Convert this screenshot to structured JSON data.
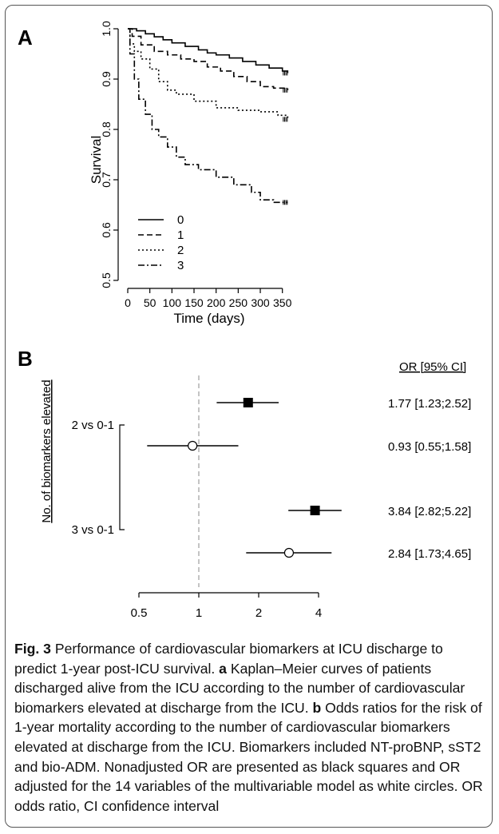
{
  "chart_data": [
    {
      "type": "line",
      "panel_label": "A",
      "xlabel": "Time (days)",
      "ylabel": "Survival",
      "xlim": [
        0,
        365
      ],
      "ylim": [
        0.5,
        1.0
      ],
      "xticks": [
        "0",
        "50",
        "100",
        "150",
        "200",
        "250",
        "300",
        "350"
      ],
      "yticks": [
        "0.5",
        "0.6",
        "0.7",
        "0.8",
        "0.9",
        "1.0"
      ],
      "legend_position": "bottom-left",
      "series": [
        {
          "name": "0",
          "dash": "solid",
          "x": [
            0,
            20,
            40,
            60,
            80,
            100,
            130,
            160,
            180,
            200,
            230,
            260,
            290,
            320,
            350,
            362
          ],
          "y": [
            1.0,
            0.996,
            0.99,
            0.984,
            0.978,
            0.972,
            0.965,
            0.958,
            0.952,
            0.948,
            0.942,
            0.935,
            0.928,
            0.922,
            0.916,
            0.912
          ]
        },
        {
          "name": "1",
          "dash": "dashed",
          "x": [
            0,
            10,
            30,
            60,
            90,
            120,
            150,
            180,
            210,
            240,
            270,
            300,
            330,
            362
          ],
          "y": [
            1.0,
            0.985,
            0.968,
            0.955,
            0.948,
            0.94,
            0.935,
            0.924,
            0.916,
            0.905,
            0.895,
            0.885,
            0.882,
            0.878
          ]
        },
        {
          "name": "2",
          "dash": "dotted",
          "x": [
            0,
            5,
            15,
            30,
            50,
            70,
            90,
            110,
            150,
            200,
            250,
            300,
            340,
            362
          ],
          "y": [
            1.0,
            0.97,
            0.955,
            0.94,
            0.92,
            0.895,
            0.878,
            0.87,
            0.856,
            0.843,
            0.838,
            0.835,
            0.828,
            0.82
          ]
        },
        {
          "name": "3",
          "dash": "dashdot",
          "x": [
            0,
            5,
            15,
            25,
            40,
            55,
            70,
            90,
            110,
            130,
            160,
            200,
            240,
            280,
            300,
            330,
            362
          ],
          "y": [
            1.0,
            0.95,
            0.9,
            0.86,
            0.83,
            0.8,
            0.785,
            0.765,
            0.745,
            0.73,
            0.72,
            0.705,
            0.69,
            0.675,
            0.66,
            0.655,
            0.655
          ]
        }
      ]
    },
    {
      "type": "scatter",
      "subtype": "forest",
      "panel_label": "B",
      "ylabel": "No. of biomarkers elevated",
      "column_header": "OR [95% CI]",
      "xscale": "log",
      "xlim": [
        0.5,
        4
      ],
      "xticks": [
        "0.5",
        "1",
        "2",
        "4"
      ],
      "reference_line": 1,
      "groups": [
        "2 vs 0-1",
        "3 vs 0-1"
      ],
      "rows": [
        {
          "group": "2 vs 0-1",
          "marker": "black square",
          "or": 1.77,
          "lo": 1.23,
          "hi": 2.52,
          "text": "1.77 [1.23;2.52]"
        },
        {
          "group": "2 vs 0-1",
          "marker": "white circle",
          "or": 0.93,
          "lo": 0.55,
          "hi": 1.58,
          "text": "0.93 [0.55;1.58]"
        },
        {
          "group": "3 vs 0-1",
          "marker": "black square",
          "or": 3.84,
          "lo": 2.82,
          "hi": 5.22,
          "text": "3.84 [2.82;5.22]"
        },
        {
          "group": "3 vs 0-1",
          "marker": "white circle",
          "or": 2.84,
          "lo": 1.73,
          "hi": 4.65,
          "text": "2.84 [1.73;4.65]"
        }
      ]
    }
  ],
  "caption": {
    "fig": "Fig. 3",
    "text_1": " Performance of cardiovascular biomarkers at ICU discharge to predict 1-year post-ICU survival. ",
    "a": "a",
    "text_2": " Kaplan–Meier curves of patients discharged alive from the ICU according to the number of cardiovascular biomarkers elevated at discharge from the ICU. ",
    "b": "b",
    "text_3": " Odds ratios for the risk of 1-year mortality according to the number of cardiovascular biomarkers elevated at discharge from the ICU. Biomarkers included NT-proBNP, sST2 and bio-ADM. Nonadjusted OR are presented as black squares and OR adjusted for the 14 variables of the multivariable model as white circles. OR odds ratio, CI confidence interval"
  }
}
